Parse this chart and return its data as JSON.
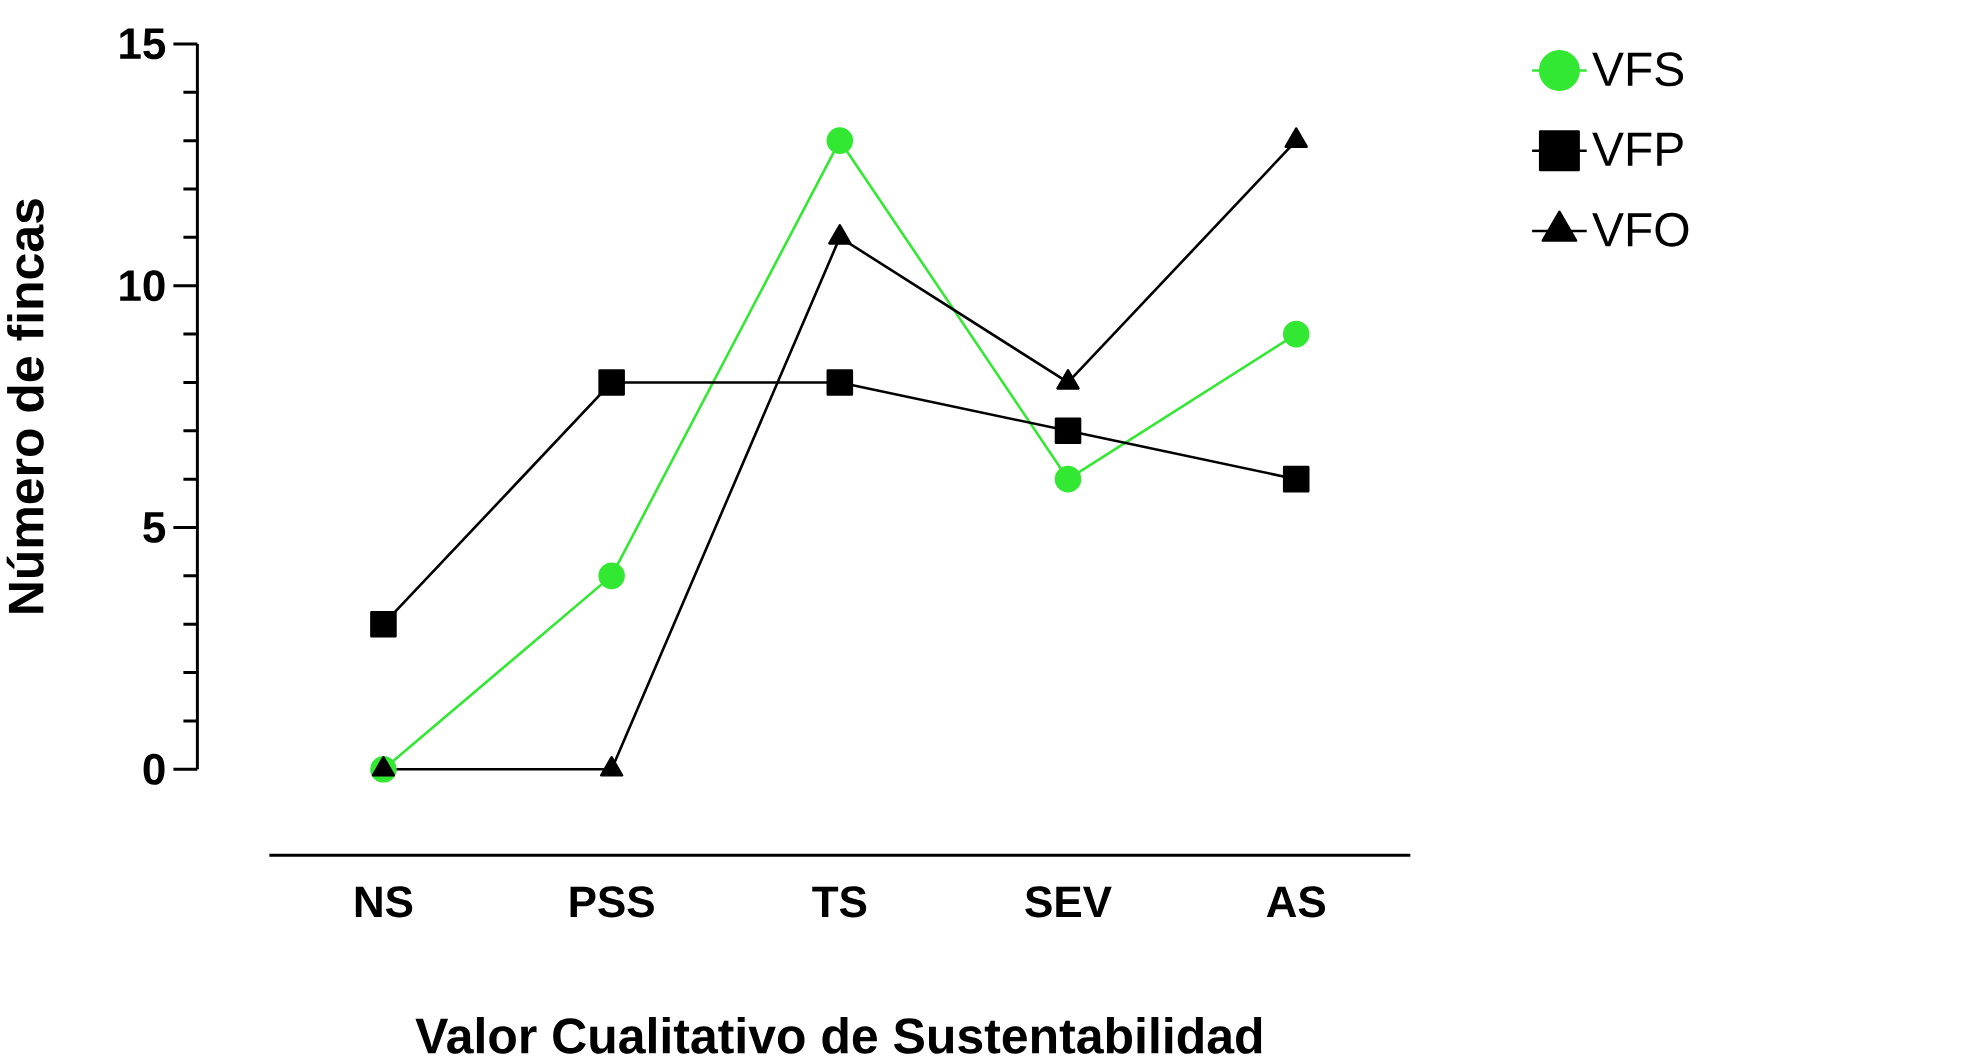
{
  "chart_data": {
    "type": "line",
    "xlabel": "Valor Cualitativo de Sustentabilidad",
    "ylabel": "Número de fincas",
    "categories": [
      "NS",
      "PSS",
      "TS",
      "SEV",
      "AS"
    ],
    "series": [
      {
        "name": "VFS",
        "color": "#33e833",
        "marker": "circle",
        "values": [
          0,
          4,
          13,
          6,
          9
        ]
      },
      {
        "name": "VFP",
        "color": "#000000",
        "marker": "square",
        "values": [
          3,
          8,
          8,
          7,
          6
        ]
      },
      {
        "name": "VFO",
        "color": "#000000",
        "marker": "triangle",
        "values": [
          0,
          0,
          11,
          8,
          13
        ]
      }
    ],
    "ylim": [
      0,
      15
    ],
    "yticks": [
      0,
      5,
      10,
      15
    ],
    "grid": false,
    "legend": "top right"
  }
}
